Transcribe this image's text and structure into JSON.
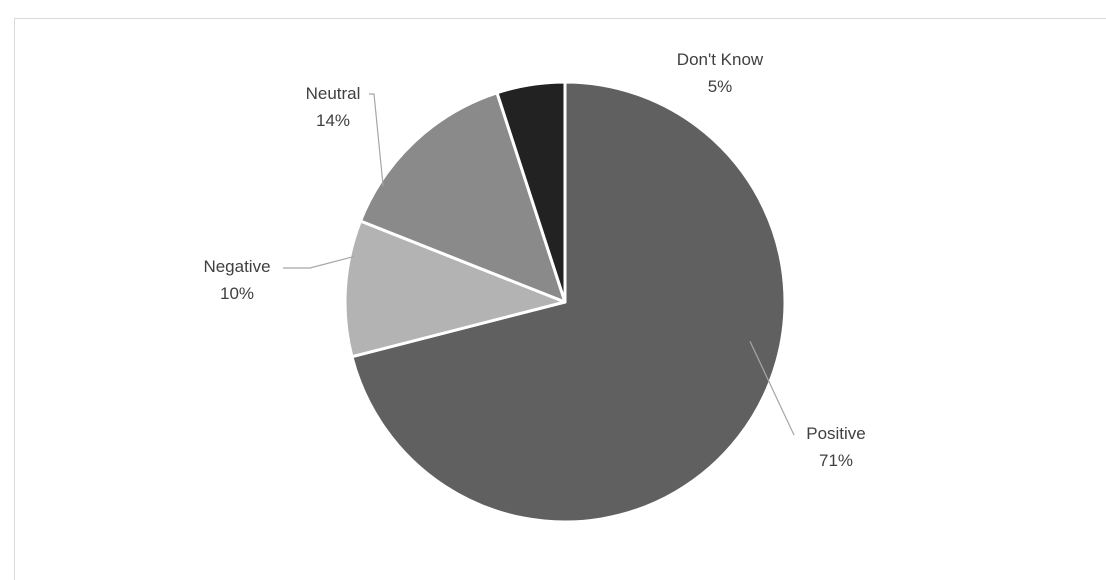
{
  "chart_data": {
    "type": "pie",
    "categories": [
      "Positive",
      "Negative",
      "Neutral",
      "Don't Know"
    ],
    "values": [
      71,
      10,
      14,
      5
    ],
    "value_labels": [
      "71%",
      "10%",
      "14%",
      "5%"
    ],
    "colors": [
      "#606060",
      "#b3b3b3",
      "#8a8a8a",
      "#222222"
    ],
    "start_angle_deg": 0,
    "direction": "clockwise",
    "legend": "none",
    "title": ""
  }
}
